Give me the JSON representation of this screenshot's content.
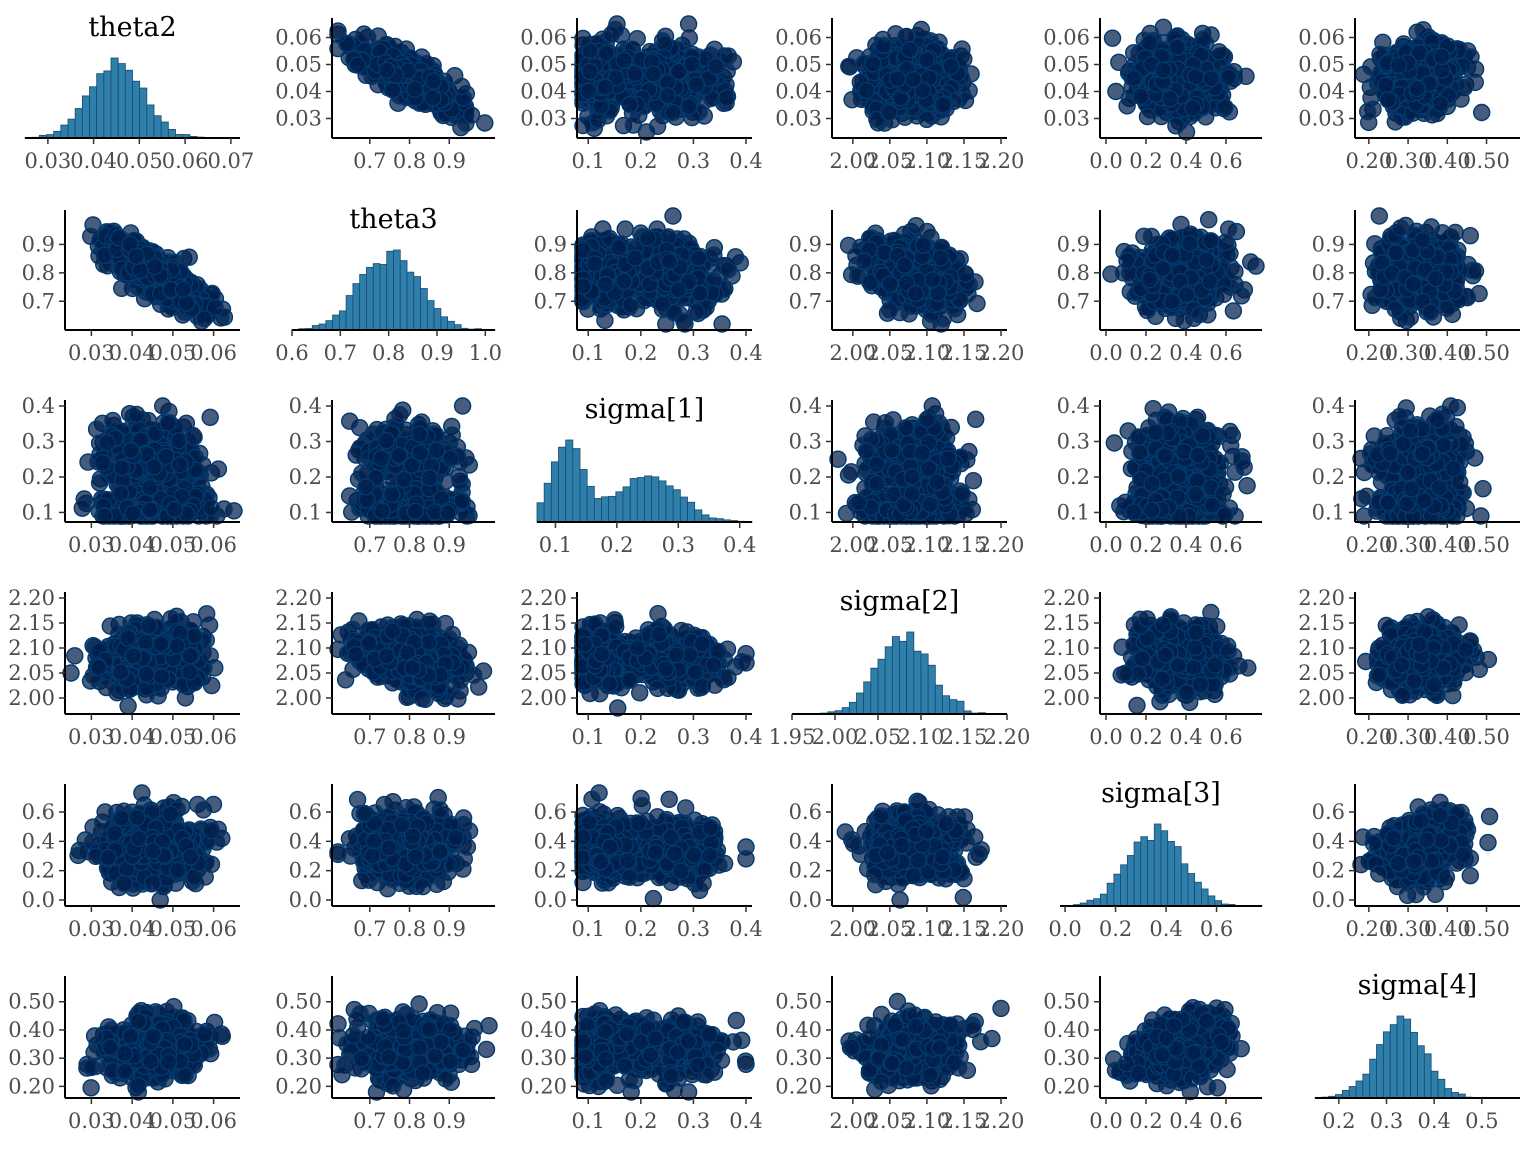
{
  "chart_data": {
    "type": "scatter",
    "layout": "pairs-matrix",
    "grid": false,
    "legend": "none",
    "colors": {
      "point_fill": "#011f4b",
      "point_stroke": "#03396c",
      "hist_fill": "#2f7fad",
      "hist_stroke": "#1a4a6b",
      "axis": "#000000",
      "tick_label": "#4d4d4d"
    },
    "parameters": [
      {
        "name": "theta2",
        "title": "theta2",
        "mean": 0.045,
        "sd": 0.006,
        "lim": [
          0.025,
          0.065
        ],
        "ticks": [
          0.03,
          0.04,
          0.05,
          0.06
        ],
        "hist_range": [
          0.025,
          0.072
        ],
        "hist_ticks": [
          0.03,
          0.04,
          0.05,
          0.06,
          0.07
        ],
        "hist_tick_labels": [
          "0.03",
          "0.04",
          "0.05",
          "0.06",
          "0.07"
        ]
      },
      {
        "name": "theta3",
        "title": "theta3",
        "mean": 0.8,
        "sd": 0.06,
        "lim": [
          0.62,
          1.0
        ],
        "ticks": [
          0.7,
          0.8,
          0.9
        ],
        "hist_range": [
          0.6,
          1.02
        ],
        "hist_ticks": [
          0.6,
          0.7,
          0.8,
          0.9,
          1.0
        ],
        "hist_tick_labels": [
          "0.6",
          "0.7",
          "0.8",
          "0.9",
          "1.0"
        ]
      },
      {
        "name": "sigma[1]",
        "title": "sigma[1]",
        "mean": 0.19,
        "sd": 0.075,
        "lim": [
          0.09,
          0.4
        ],
        "ticks": [
          0.1,
          0.2,
          0.3,
          0.4
        ],
        "hist_range": [
          0.07,
          0.42
        ],
        "hist_ticks": [
          0.1,
          0.2,
          0.3,
          0.4
        ],
        "hist_tick_labels": [
          "0.1",
          "0.2",
          "0.3",
          "0.4"
        ]
      },
      {
        "name": "sigma[2]",
        "title": "sigma[2]",
        "mean": 2.08,
        "sd": 0.03,
        "lim": [
          1.98,
          2.2
        ],
        "ticks": [
          2.0,
          2.05,
          2.1,
          2.15,
          2.2
        ],
        "hist_range": [
          1.95,
          2.2
        ],
        "hist_ticks": [
          1.95,
          2.0,
          2.05,
          2.1,
          2.15,
          2.2
        ],
        "hist_tick_labels": [
          "1.95",
          "2.00",
          "2.05",
          "2.10",
          "2.15",
          "2.20"
        ]
      },
      {
        "name": "sigma[3]",
        "title": "sigma[3]",
        "mean": 0.36,
        "sd": 0.11,
        "lim": [
          0.0,
          0.75
        ],
        "ticks": [
          0.0,
          0.2,
          0.4,
          0.6
        ],
        "hist_range": [
          -0.02,
          0.78
        ],
        "hist_ticks": [
          0.0,
          0.2,
          0.4,
          0.6
        ],
        "hist_tick_labels": [
          "0.0",
          "0.2",
          "0.4",
          "0.6"
        ]
      },
      {
        "name": "sigma[4]",
        "title": "sigma[4]",
        "mean": 0.33,
        "sd": 0.05,
        "lim": [
          0.18,
          0.57
        ],
        "ticks": [
          0.2,
          0.3,
          0.4,
          0.5
        ],
        "hist_range": [
          0.15,
          0.58
        ],
        "hist_ticks": [
          0.2,
          0.3,
          0.4,
          0.5
        ],
        "hist_tick_labels": [
          "0.2",
          "0.3",
          "0.4",
          "0.5"
        ]
      }
    ],
    "correlations": [
      [
        1.0,
        -0.8,
        0.0,
        0.05,
        0.0,
        0.15
      ],
      [
        -0.8,
        1.0,
        0.0,
        -0.35,
        0.05,
        0.0
      ],
      [
        0.0,
        0.0,
        1.0,
        0.0,
        0.0,
        0.0
      ],
      [
        0.05,
        -0.35,
        0.0,
        1.0,
        0.0,
        0.1
      ],
      [
        0.0,
        0.05,
        0.0,
        0.0,
        1.0,
        0.3
      ],
      [
        0.15,
        0.0,
        0.0,
        0.1,
        0.3,
        1.0
      ]
    ],
    "samples_per_panel": 600
  }
}
